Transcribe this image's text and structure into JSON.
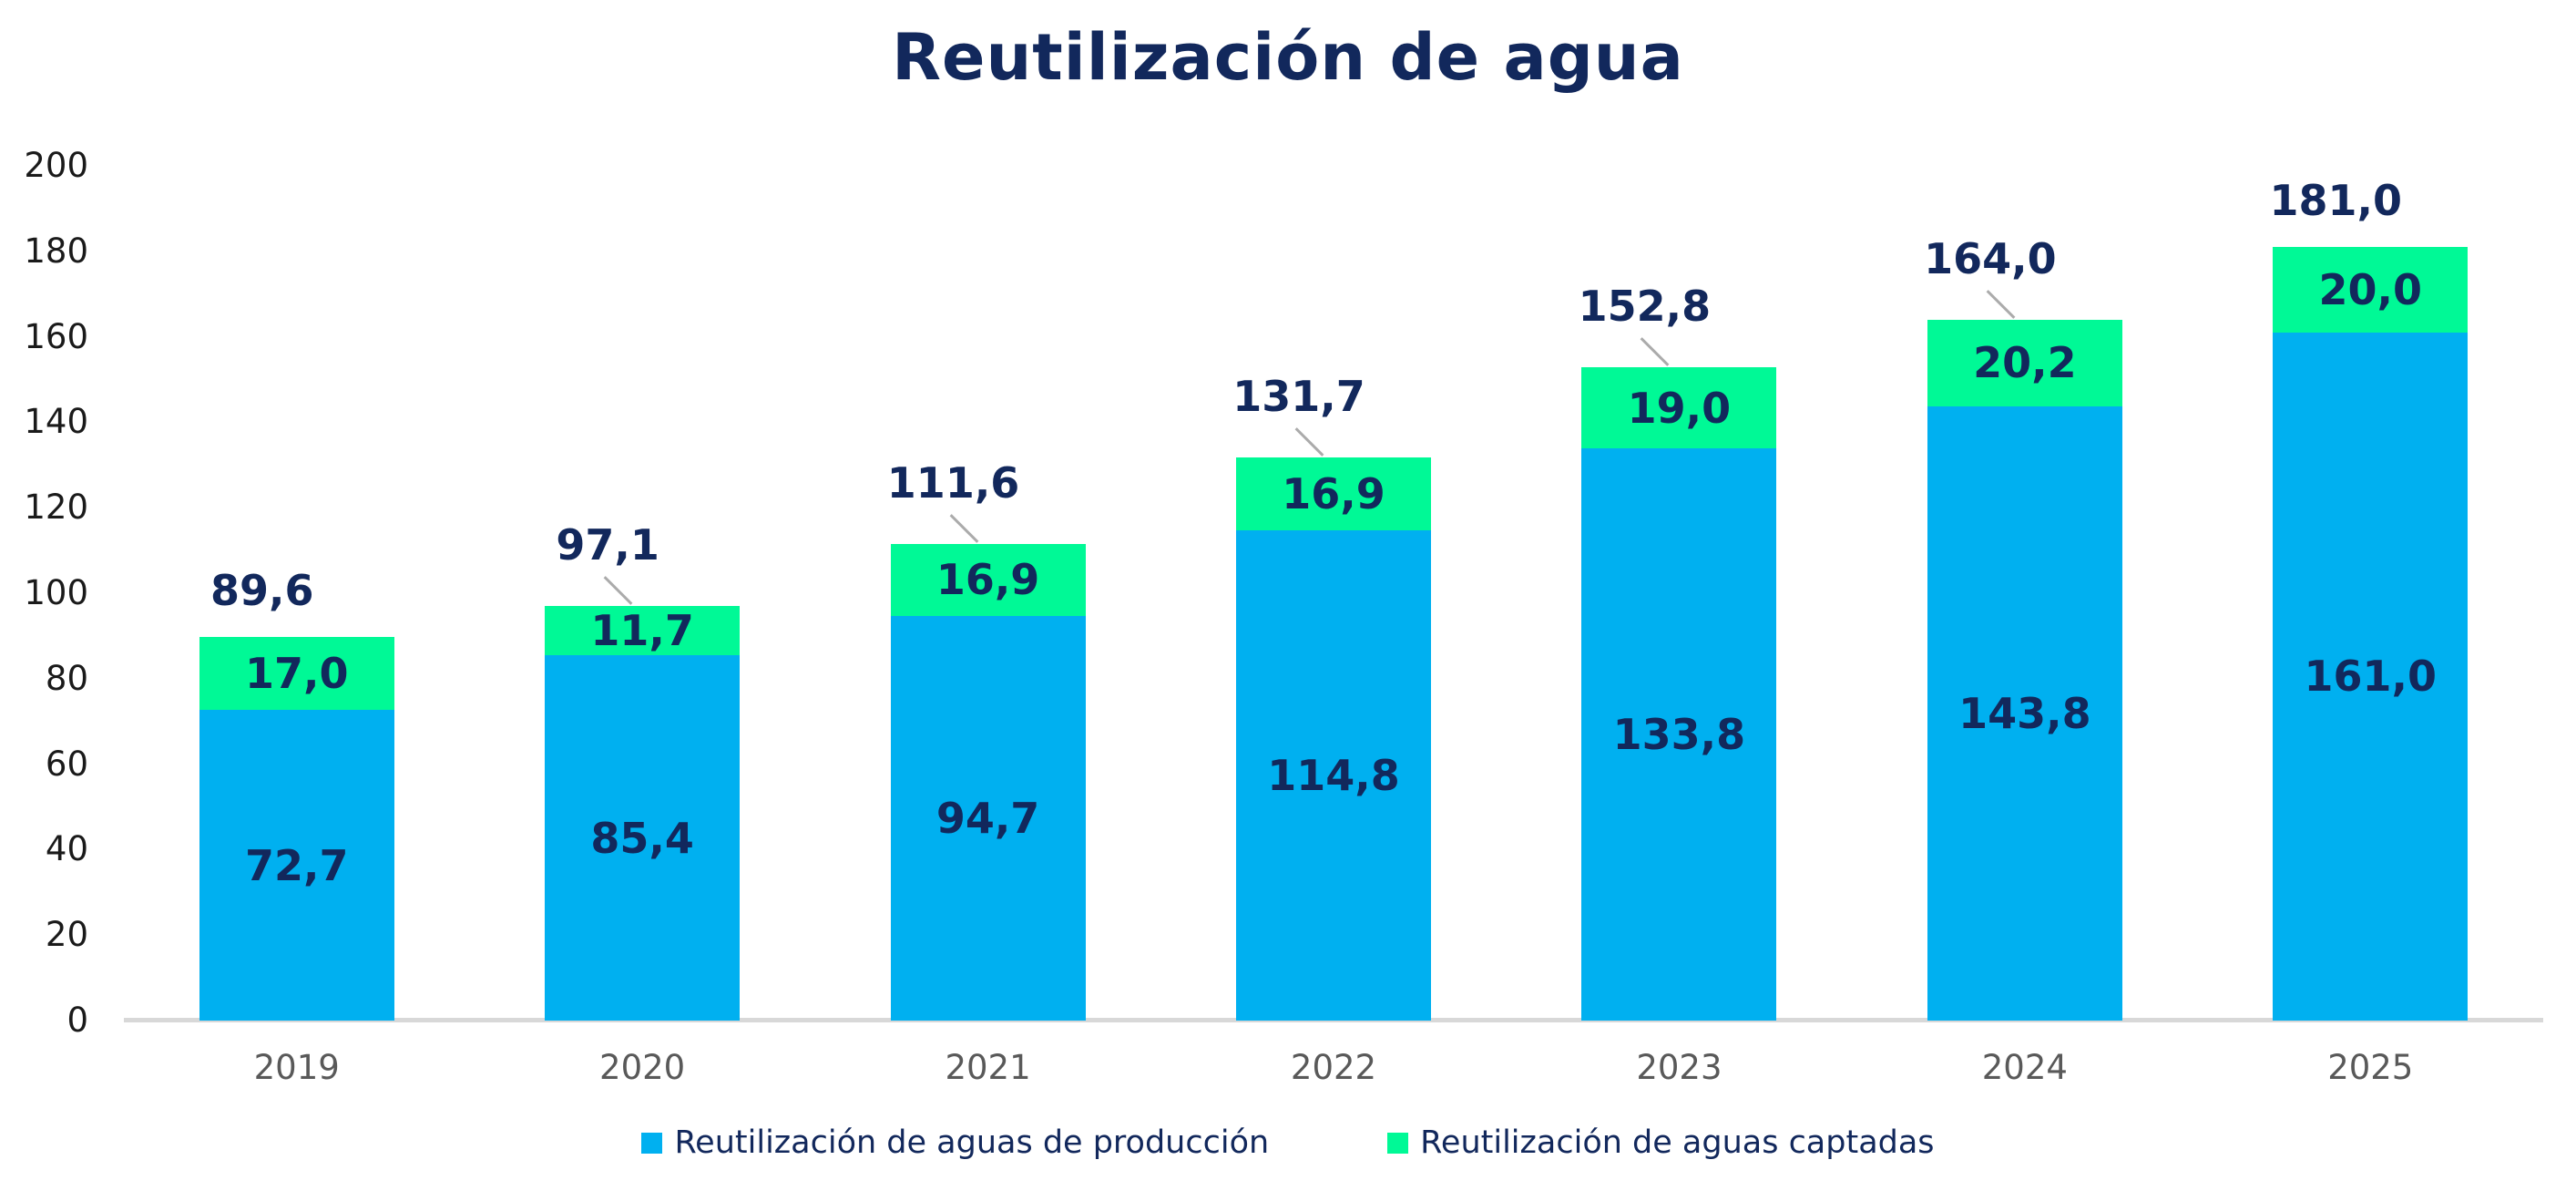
{
  "title": "Reutilización de agua",
  "colors": {
    "blue": "#00B0F0",
    "green": "#00F996",
    "navy_text": "#12285C",
    "axis_line": "#D8D8D8",
    "y_tick_text": "#1a1a1a",
    "x_tick_text": "#595959",
    "leader_line": "#ABABAB",
    "background": "#ffffff"
  },
  "chart_data": {
    "type": "bar",
    "stacked": true,
    "title": "Reutilización de agua",
    "xlabel": "",
    "ylabel": "",
    "grid": false,
    "legend_position": "bottom",
    "ylim": [
      0,
      200
    ],
    "ytick_step": 20,
    "yticks": [
      "0",
      "20",
      "40",
      "60",
      "80",
      "100",
      "120",
      "140",
      "160",
      "180",
      "200"
    ],
    "categories": [
      "2019",
      "2020",
      "2021",
      "2022",
      "2023",
      "2024",
      "2025"
    ],
    "series": [
      {
        "name": "Reutilización de aguas de producción",
        "color_key": "blue",
        "values": [
          72.7,
          85.4,
          94.7,
          114.8,
          133.8,
          143.8,
          161.0
        ],
        "labels": [
          "72,7",
          "85,4",
          "94,7",
          "114,8",
          "133,8",
          "143,8",
          "161,0"
        ]
      },
      {
        "name": "Reutilización de aguas captadas",
        "color_key": "green",
        "values": [
          17.0,
          11.7,
          16.9,
          16.9,
          19.0,
          20.2,
          20.0
        ],
        "labels": [
          "17,0",
          "11,7",
          "16,9",
          "16,9",
          "19,0",
          "20,2",
          "20,0"
        ]
      }
    ],
    "totals": {
      "values": [
        89.6,
        97.1,
        111.6,
        131.7,
        152.8,
        164.0,
        181.0
      ],
      "labels": [
        "89,6",
        "97,1",
        "111,6",
        "131,7",
        "152,8",
        "164,0",
        "181,0"
      ]
    },
    "total_leader_lines": [
      false,
      true,
      true,
      true,
      true,
      true,
      false
    ]
  }
}
